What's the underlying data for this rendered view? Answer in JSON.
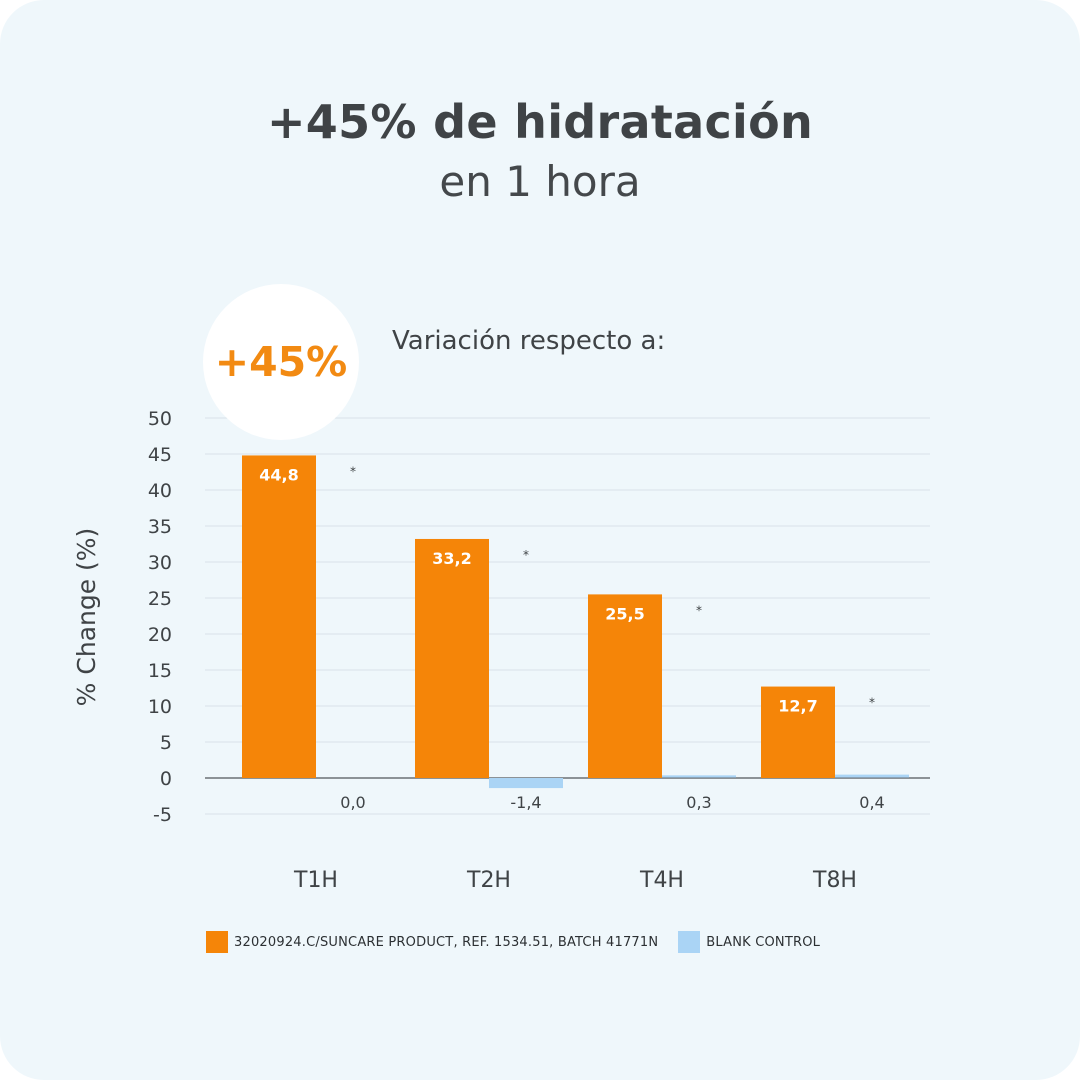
{
  "header": {
    "title": "+45% de hidratación",
    "subtitle": "en 1 hora"
  },
  "badge": {
    "text": "+45%"
  },
  "chart_caption": "Variación respecto a:",
  "colors": {
    "product": "#f58508",
    "control": "#aad4f5",
    "background": "#eff7fb",
    "accent": "#f28a12"
  },
  "chart_data": {
    "type": "bar",
    "title": "",
    "xlabel": "",
    "ylabel": "% Change (%)",
    "ylim": [
      -5,
      50
    ],
    "yticks": [
      -5,
      0,
      5,
      10,
      15,
      20,
      25,
      30,
      35,
      40,
      45,
      50
    ],
    "grid": true,
    "legend_position": "bottom",
    "categories": [
      "T1H",
      "T2H",
      "T4H",
      "T8H"
    ],
    "series": [
      {
        "name": "32020924.C/SUNCARE PRODUCT, REF. 1534.51, BATCH 41771N",
        "values": [
          44.8,
          33.2,
          25.5,
          12.7
        ],
        "labels": [
          "44,8",
          "33,2",
          "25,5",
          "12,7"
        ]
      },
      {
        "name": "BLANK CONTROL",
        "values": [
          0.0,
          -1.4,
          0.3,
          0.4
        ],
        "labels": [
          "0,0",
          "-1,4",
          "0,3",
          "0,4"
        ]
      }
    ],
    "significance_marks": [
      "*",
      "*",
      "*",
      "*"
    ]
  }
}
